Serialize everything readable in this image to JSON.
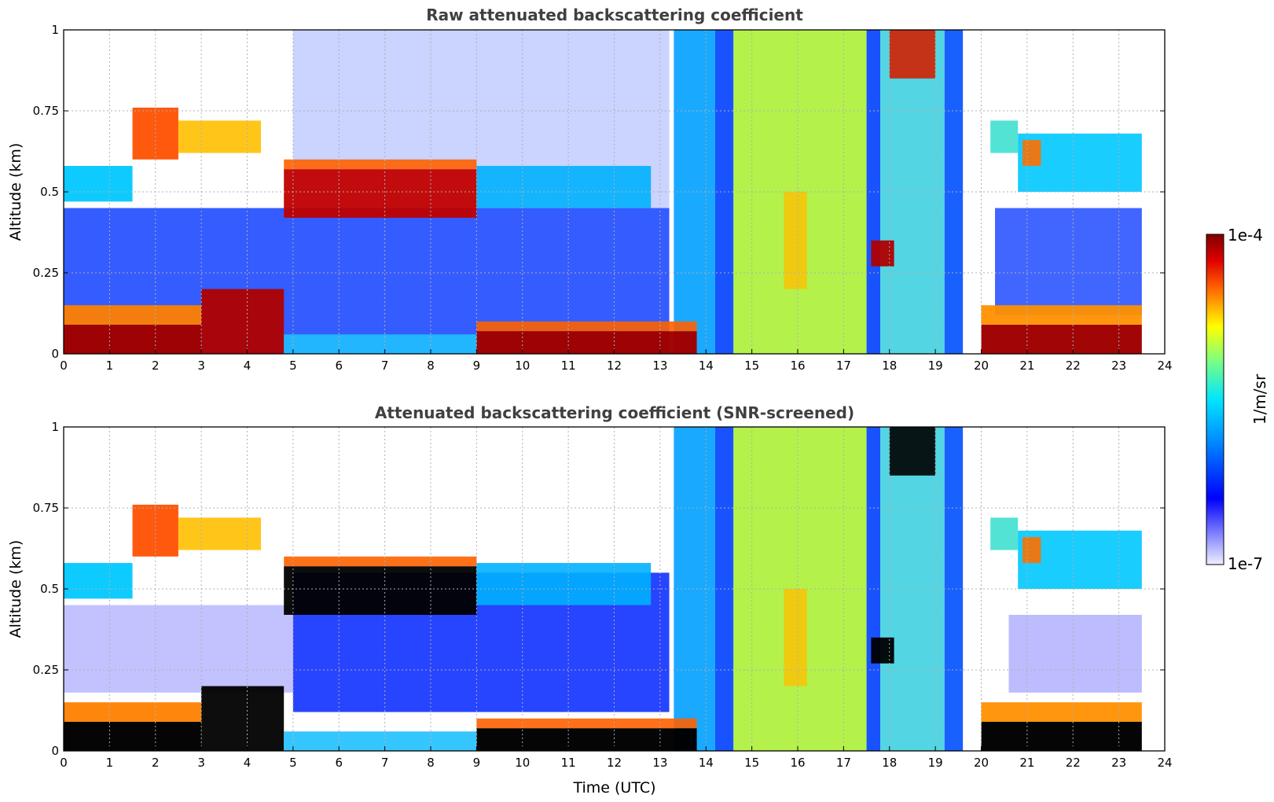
{
  "chart_data": [
    {
      "type": "heatmap",
      "title": "Raw attenuated backscattering coefficient",
      "xlabel": "",
      "ylabel": "Altitude (km)",
      "xlim": [
        0,
        24
      ],
      "ylim": [
        0,
        1
      ],
      "x_ticks": [
        "0",
        "1",
        "2",
        "3",
        "4",
        "5",
        "6",
        "7",
        "8",
        "9",
        "10",
        "11",
        "12",
        "13",
        "14",
        "15",
        "16",
        "17",
        "18",
        "19",
        "20",
        "21",
        "22",
        "23",
        "24"
      ],
      "y_ticks": [
        "0",
        "0.25",
        "0.5",
        "0.75",
        "1"
      ],
      "grid": true,
      "screened": false
    },
    {
      "type": "heatmap",
      "title": "Attenuated backscattering coefficient (SNR-screened)",
      "xlabel": "Time (UTC)",
      "ylabel": "Altitude (km)",
      "xlim": [
        0,
        24
      ],
      "ylim": [
        0,
        1
      ],
      "x_ticks": [
        "0",
        "1",
        "2",
        "3",
        "4",
        "5",
        "6",
        "7",
        "8",
        "9",
        "10",
        "11",
        "12",
        "13",
        "14",
        "15",
        "16",
        "17",
        "18",
        "19",
        "20",
        "21",
        "22",
        "23",
        "24"
      ],
      "y_ticks": [
        "0",
        "0.25",
        "0.5",
        "0.75",
        "1"
      ],
      "grid": true,
      "screened": true
    }
  ],
  "colorbar": {
    "label": "1/m/sr",
    "max_label": "1e-4",
    "min_label": "1e-7",
    "scale": "log",
    "colormap": "jet"
  }
}
